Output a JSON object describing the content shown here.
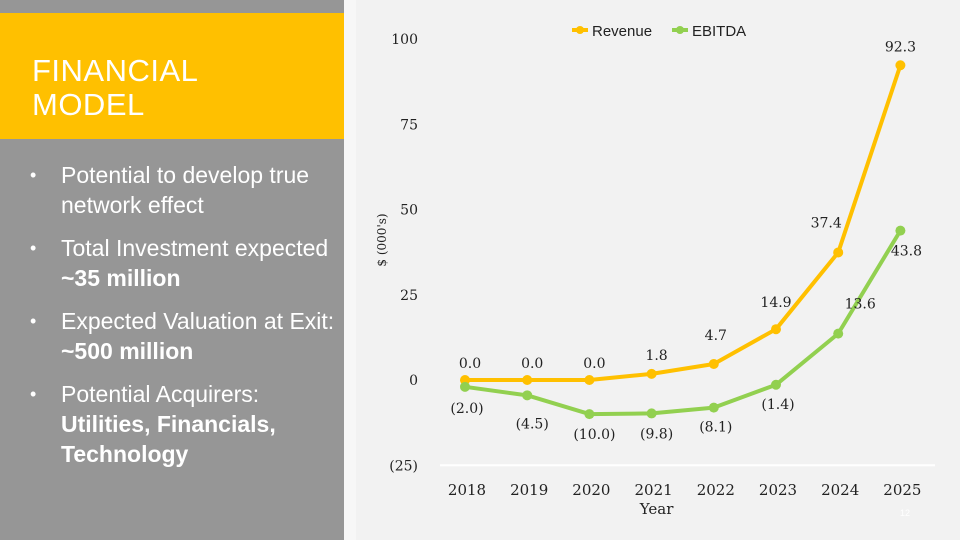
{
  "slide": {
    "title_line1": "FINANCIAL",
    "title_line2": "MODEL",
    "bullets": [
      {
        "text": "Potential to develop true network effect",
        "bold": ""
      },
      {
        "text": "Total Investment expected ",
        "bold": "~35 million"
      },
      {
        "text": "Expected Valuation at Exit: ",
        "bold": "~500 million"
      },
      {
        "text": "Potential Acquirers: ",
        "bold": "Utilities, Financials, Technology"
      }
    ],
    "slide_number": "12"
  },
  "colors": {
    "revenue": "#ffc000",
    "ebitda": "#92d050",
    "panel": "#969696",
    "band": "#ffc000"
  },
  "chart_data": {
    "type": "line",
    "xlabel": "Year",
    "ylabel": "$ (000's)",
    "categories": [
      "2018",
      "2019",
      "2020",
      "2021",
      "2022",
      "2023",
      "2024",
      "2025"
    ],
    "ylim": [
      -25,
      100
    ],
    "yticks": [
      "100",
      "75",
      "50",
      "25",
      "0",
      "(25)"
    ],
    "legend": "top",
    "grid": false,
    "series": [
      {
        "name": "Revenue",
        "values": [
          0.0,
          0.0,
          0.0,
          1.8,
          4.7,
          14.9,
          37.4,
          92.3
        ],
        "labels": [
          "0.0",
          "0.0",
          "0.0",
          "1.8",
          "4.7",
          "14.9",
          "37.4",
          "92.3"
        ]
      },
      {
        "name": "EBITDA",
        "values": [
          -2.0,
          -4.5,
          -10.0,
          -9.8,
          -8.1,
          -1.4,
          13.6,
          43.8
        ],
        "labels": [
          "(2.0)",
          "(4.5)",
          "(10.0)",
          "(9.8)",
          "(8.1)",
          "(1.4)",
          "13.6",
          "43.8"
        ]
      }
    ]
  }
}
